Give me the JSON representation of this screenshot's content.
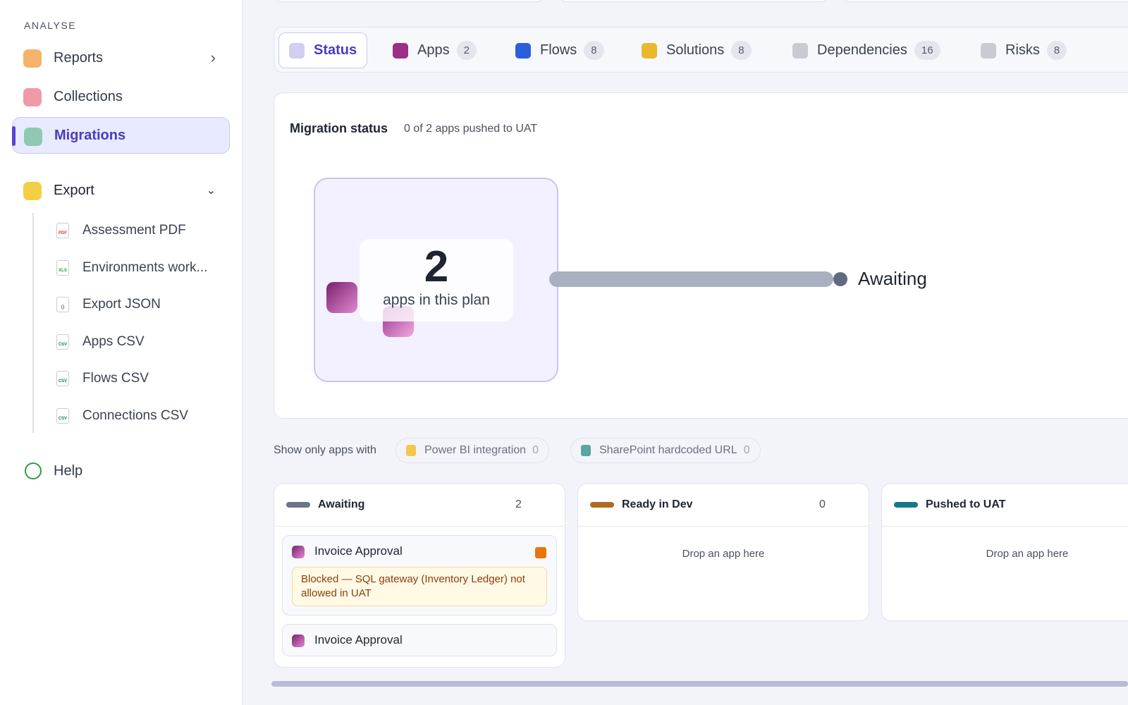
{
  "sidebar": {
    "section": "ANALYSE",
    "items": [
      {
        "label": "Reports"
      },
      {
        "label": "Collections"
      },
      {
        "label": "Migrations"
      }
    ],
    "export": {
      "label": "Export",
      "items": [
        {
          "icon": "PDF",
          "label": "Assessment PDF"
        },
        {
          "icon": "XLS",
          "label": "Environments work..."
        },
        {
          "icon": "{}",
          "label": "Export JSON"
        },
        {
          "icon": "CSV",
          "label": "Apps CSV"
        },
        {
          "icon": "CSV",
          "label": "Flows CSV"
        },
        {
          "icon": "CSV",
          "label": "Connections CSV"
        }
      ]
    },
    "help": "Help"
  },
  "tabs": [
    {
      "label": "Status"
    },
    {
      "label": "Apps",
      "count": 2
    },
    {
      "label": "Flows",
      "count": 8
    },
    {
      "label": "Solutions",
      "count": 8
    },
    {
      "label": "Dependencies",
      "count": 16
    },
    {
      "label": "Risks",
      "count": 8
    }
  ],
  "status": {
    "title": "Migration status",
    "subtitle": "0 of 2 apps pushed to UAT",
    "count": 2,
    "count_label": "apps in this plan",
    "stage": "Awaiting"
  },
  "filters": {
    "label": "Show only apps with",
    "chips": [
      {
        "label": "Power BI integration",
        "count": 0
      },
      {
        "label": "SharePoint hardcoded URL",
        "count": 0
      }
    ]
  },
  "columns": [
    {
      "name": "Awaiting",
      "count": 2,
      "cards": [
        {
          "title": "Invoice Approval",
          "note": "Blocked — SQL gateway (Inventory Ledger) not allowed in UAT"
        },
        {
          "title": "Invoice Approval"
        }
      ]
    },
    {
      "name": "Ready in Dev",
      "count": 0,
      "empty": "Drop an app here"
    },
    {
      "name": "Pushed to UAT",
      "empty": "Drop an app here"
    }
  ]
}
